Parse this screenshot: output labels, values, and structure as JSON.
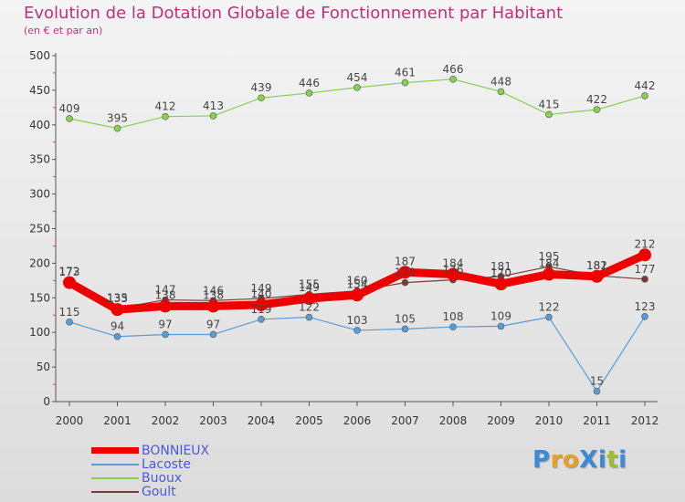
{
  "header": {
    "title": "Evolution de la Dotation Globale de Fonctionnement par Habitant",
    "subtitle": "(en € et par an)"
  },
  "colors": {
    "title": "#c0307a",
    "legend_text": "#4a5ad6",
    "BONNIEUX": "#ee0000",
    "Lacoste": "#5a9cd8",
    "Buoux": "#88d050",
    "Goult": "#7a3a3a"
  },
  "logo": {
    "text": "ProXiti",
    "letter_colors": [
      "#3b8ad8",
      "#e8a020",
      "#e8a020",
      "#3b8ad8",
      "#3b8ad8",
      "#9ac030",
      "#3b8ad8"
    ]
  },
  "chart_data": {
    "type": "line",
    "x": [
      "2000",
      "2001",
      "2002",
      "2003",
      "2004",
      "2005",
      "2006",
      "2007",
      "2008",
      "2009",
      "2010",
      "2011",
      "2012"
    ],
    "ylim": [
      0,
      500
    ],
    "yticks": [
      0,
      50,
      100,
      150,
      200,
      250,
      300,
      350,
      400,
      450,
      500
    ],
    "grid": false,
    "legend_position": "bottom-left",
    "series": [
      {
        "name": "BONNIEUX",
        "values": [
          172,
          133,
          138,
          138,
          140,
          149,
          154,
          187,
          184,
          170,
          184,
          181,
          212
        ]
      },
      {
        "name": "Lacoste",
        "values": [
          115,
          94,
          97,
          97,
          119,
          122,
          103,
          105,
          108,
          109,
          122,
          15,
          123
        ]
      },
      {
        "name": "Buoux",
        "values": [
          409,
          395,
          412,
          413,
          439,
          446,
          454,
          461,
          466,
          448,
          415,
          422,
          442
        ]
      },
      {
        "name": "Goult",
        "values": [
          173,
          135,
          147,
          146,
          149,
          155,
          160,
          172,
          176,
          181,
          195,
          182,
          177
        ]
      }
    ]
  }
}
